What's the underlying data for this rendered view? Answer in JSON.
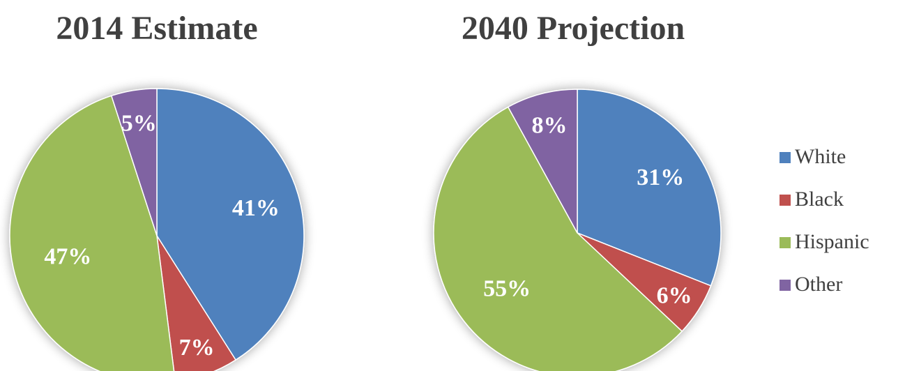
{
  "chart_data": [
    {
      "type": "pie",
      "title": "2014 Estimate",
      "categories": [
        "White",
        "Black",
        "Hispanic",
        "Other"
      ],
      "values": [
        41,
        7,
        47,
        5
      ],
      "labels": [
        "41%",
        "7%",
        "47%",
        "5%"
      ]
    },
    {
      "type": "pie",
      "title": "2040 Projection",
      "categories": [
        "White",
        "Black",
        "Hispanic",
        "Other"
      ],
      "values": [
        31,
        6,
        55,
        8
      ],
      "labels": [
        "31%",
        "6%",
        "55%",
        "8%"
      ]
    }
  ],
  "legend": {
    "placement": "right",
    "items": [
      {
        "label": "White",
        "color": "#4f81bd"
      },
      {
        "label": "Black",
        "color": "#c0504d"
      },
      {
        "label": "Hispanic",
        "color": "#9bbb59"
      },
      {
        "label": "Other",
        "color": "#8064a2"
      }
    ]
  }
}
